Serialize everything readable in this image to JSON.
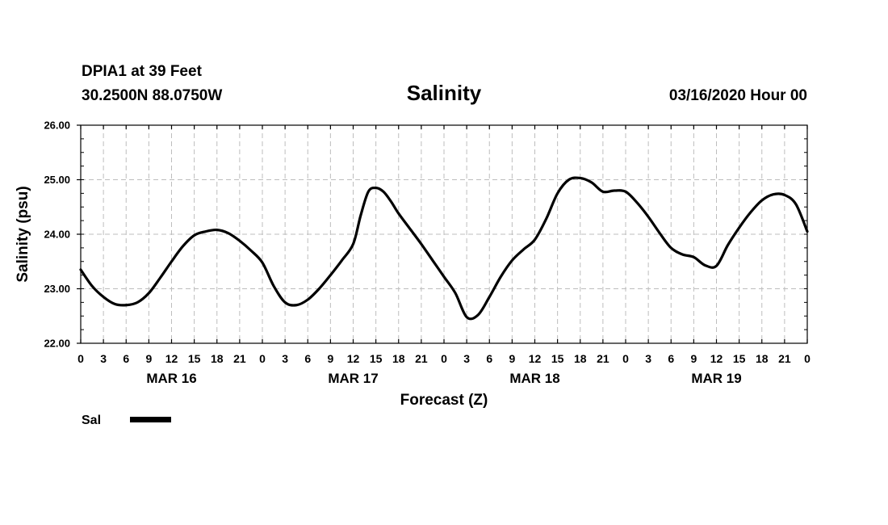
{
  "header": {
    "station": "DPIA1 at 39 Feet",
    "coords": "30.2500N 88.0750W",
    "datetime": "03/16/2020 Hour 00"
  },
  "chart_data": {
    "type": "line",
    "title": "Salinity",
    "xlabel": "Forecast (Z)",
    "ylabel": "Salinity (psu)",
    "xlim": [
      0,
      96
    ],
    "ylim": [
      22.0,
      26.0
    ],
    "yticks": [
      "22.00",
      "23.00",
      "24.00",
      "25.00",
      "26.00"
    ],
    "xtick_hours": [
      0,
      3,
      6,
      9,
      12,
      15,
      18,
      21,
      24,
      27,
      30,
      33,
      36,
      39,
      42,
      45,
      48,
      51,
      54,
      57,
      60,
      63,
      66,
      69,
      72,
      75,
      78,
      81,
      84,
      87,
      90,
      93,
      96
    ],
    "xtick_labels": [
      "0",
      "3",
      "6",
      "9",
      "12",
      "15",
      "18",
      "21",
      "0",
      "3",
      "6",
      "9",
      "12",
      "15",
      "18",
      "21",
      "0",
      "3",
      "6",
      "9",
      "12",
      "15",
      "18",
      "21",
      "0",
      "3",
      "6",
      "9",
      "12",
      "15",
      "18",
      "21",
      "0"
    ],
    "day_labels": [
      {
        "label": "MAR 16",
        "hour": 12
      },
      {
        "label": "MAR 17",
        "hour": 36
      },
      {
        "label": "MAR 18",
        "hour": 60
      },
      {
        "label": "MAR 19",
        "hour": 84
      }
    ],
    "grid": true,
    "legend_position": "bottom-left",
    "series": [
      {
        "name": "Sal",
        "color": "#000000",
        "x": [
          0,
          1.5,
          3,
          4.5,
          6,
          7.5,
          9,
          10.5,
          12,
          13.5,
          15,
          16.5,
          18,
          19.5,
          21,
          22.5,
          24,
          25.5,
          27,
          28.5,
          30,
          31.5,
          33,
          34.5,
          36,
          37,
          38,
          39,
          40,
          41,
          42,
          43.5,
          45,
          46.5,
          48,
          49.5,
          51,
          52.5,
          54,
          55.5,
          57,
          58.5,
          60,
          61.5,
          63,
          64.5,
          66,
          67.5,
          69,
          70.5,
          72,
          73.5,
          75,
          76.5,
          78,
          79.5,
          81,
          82.5,
          84,
          85.5,
          87,
          88.5,
          90,
          91.5,
          93,
          94.5,
          96
        ],
        "y": [
          23.35,
          23.05,
          22.85,
          22.72,
          22.7,
          22.75,
          22.92,
          23.2,
          23.5,
          23.78,
          23.98,
          24.05,
          24.08,
          24.02,
          23.88,
          23.7,
          23.48,
          23.05,
          22.75,
          22.7,
          22.8,
          23.0,
          23.25,
          23.52,
          23.82,
          24.35,
          24.78,
          24.85,
          24.78,
          24.6,
          24.38,
          24.1,
          23.82,
          23.52,
          23.22,
          22.92,
          22.48,
          22.52,
          22.85,
          23.22,
          23.52,
          23.72,
          23.9,
          24.28,
          24.75,
          25.0,
          25.03,
          24.95,
          24.78,
          24.8,
          24.78,
          24.58,
          24.32,
          24.02,
          23.75,
          23.63,
          23.58,
          23.43,
          23.42,
          23.8,
          24.12,
          24.4,
          24.62,
          24.73,
          24.72,
          24.55,
          24.05
        ]
      }
    ]
  }
}
